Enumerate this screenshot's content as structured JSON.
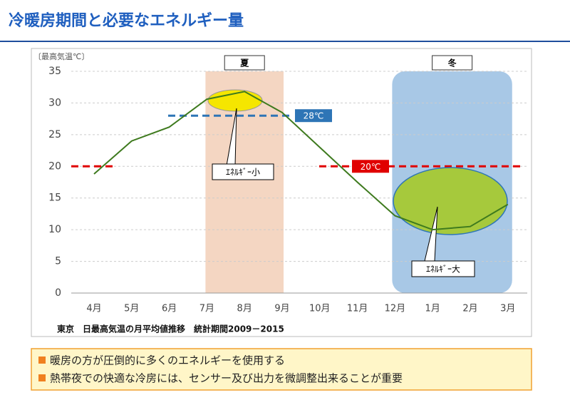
{
  "chart_data": {
    "type": "line",
    "title": "冷暖房期間と必要なエネルギー量",
    "y_label": "〔最高気温℃〕",
    "categories": [
      "4月",
      "5月",
      "6月",
      "7月",
      "8月",
      "9月",
      "10月",
      "11月",
      "12月",
      "1月",
      "2月",
      "3月"
    ],
    "values": [
      18.8,
      24,
      26.2,
      30.6,
      31.8,
      28.5,
      23,
      17.5,
      12.2,
      10,
      10.5,
      14
    ],
    "color": "#3e7a1e",
    "ylim": [
      0,
      35
    ],
    "yticks": [
      0,
      5,
      10,
      15,
      20,
      25,
      30,
      35
    ],
    "grid": true,
    "reference_lines": [
      {
        "value": 28,
        "label": "28℃",
        "color": "#2e75b6"
      },
      {
        "value": 20,
        "label": "20℃",
        "color": "#e00000"
      }
    ],
    "bands": [
      {
        "label": "夏",
        "from": "7月",
        "to": "9月",
        "color": "#f4d6c2"
      },
      {
        "label": "冬",
        "from": "12月",
        "to": "3月",
        "color": "#a8c8e6"
      }
    ],
    "annotations": [
      {
        "text": "ｴﾈﾙｷﾞｰ小"
      },
      {
        "text": "ｴﾈﾙｷﾞｰ大"
      }
    ],
    "caption": "東京　日最高気温の月平均値推移　統計期間2009－2015"
  },
  "notes": [
    "暖房の方が圧倒的に多くのエネルギーを使用する",
    "熱帯夜での快適な冷房には、センサー及び出力を微調整出来ることが重要"
  ]
}
